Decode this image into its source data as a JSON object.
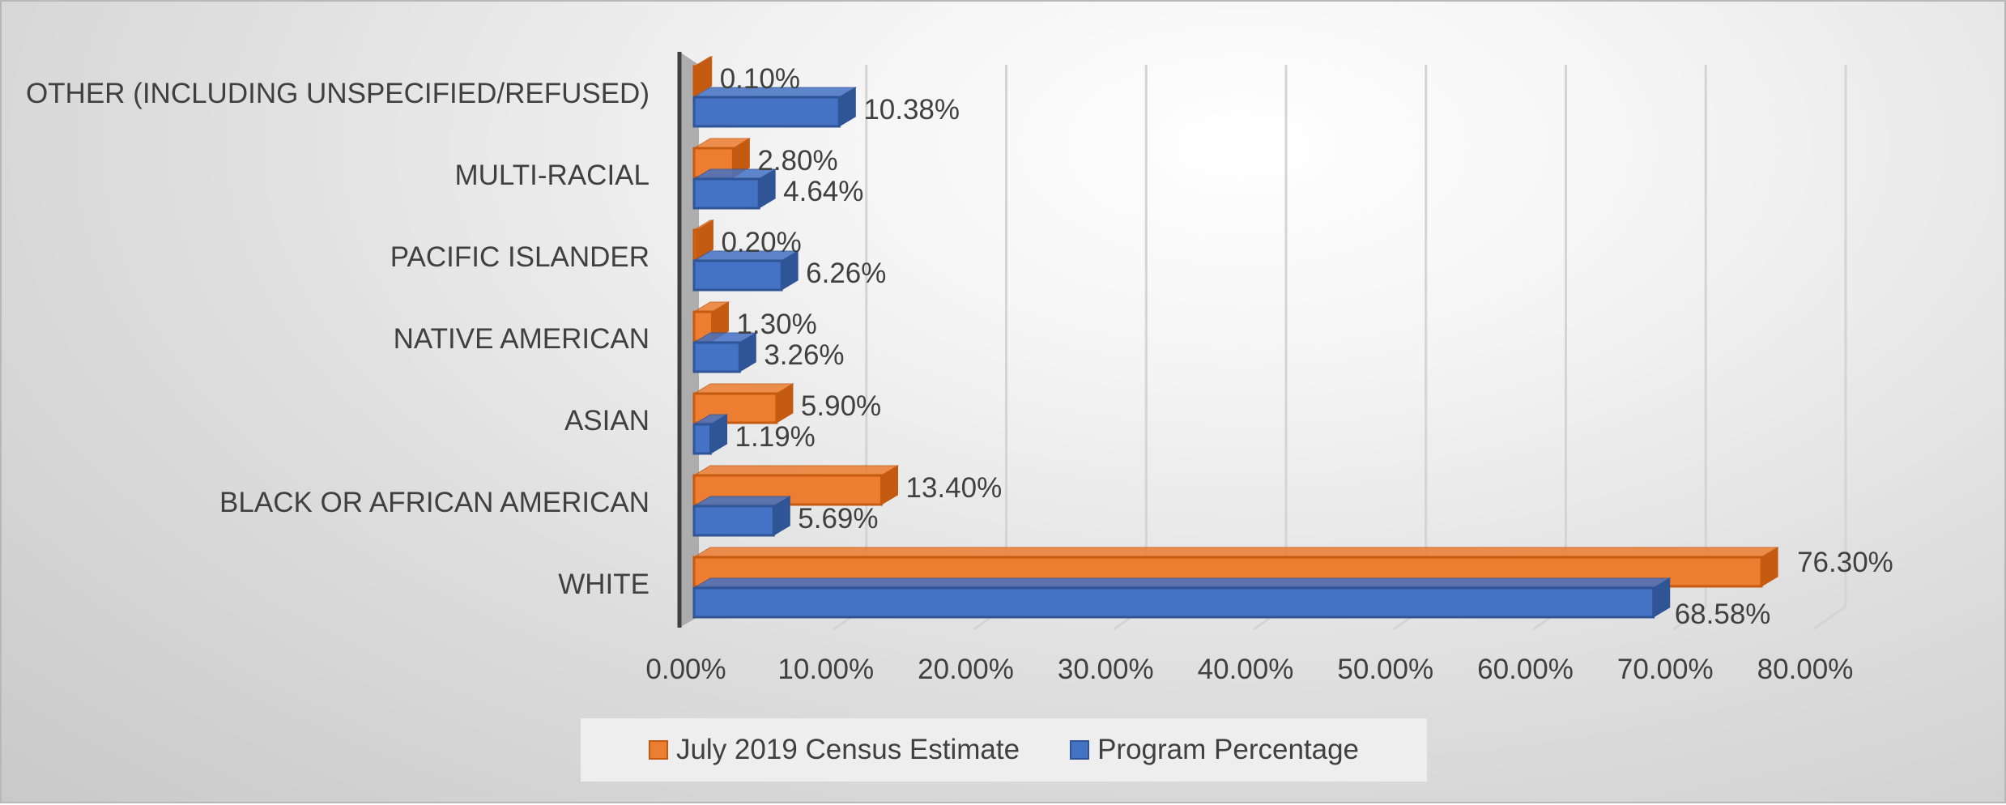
{
  "chart_data": {
    "type": "bar",
    "orientation": "horizontal",
    "categories": [
      "OTHER (INCLUDING UNSPECIFIED/REFUSED)",
      "MULTI-RACIAL",
      "PACIFIC ISLANDER",
      "NATIVE AMERICAN",
      "ASIAN",
      "BLACK OR AFRICAN AMERICAN",
      "WHITE"
    ],
    "series": [
      {
        "name": "July 2019 Census Estimate",
        "color": "#ED7D31",
        "edge_color": "#C55A11",
        "values": [
          0.1,
          2.8,
          0.2,
          1.3,
          5.9,
          13.4,
          76.3
        ],
        "labels": [
          "0.10%",
          "2.80%",
          "0.20%",
          "1.30%",
          "5.90%",
          "13.40%",
          "76.30%"
        ]
      },
      {
        "name": "Program Percentage",
        "color": "#4472C4",
        "edge_color": "#2F5597",
        "values": [
          10.38,
          4.64,
          6.26,
          3.26,
          1.19,
          5.69,
          68.58
        ],
        "labels": [
          "10.38%",
          "4.64%",
          "6.26%",
          "3.26%",
          "1.19%",
          "5.69%",
          "68.58%"
        ]
      }
    ],
    "x_ticks": [
      "0.00%",
      "10.00%",
      "20.00%",
      "30.00%",
      "40.00%",
      "50.00%",
      "60.00%",
      "70.00%",
      "80.00%"
    ],
    "xlim": [
      0,
      80
    ],
    "grid": true,
    "legend_position": "bottom"
  }
}
